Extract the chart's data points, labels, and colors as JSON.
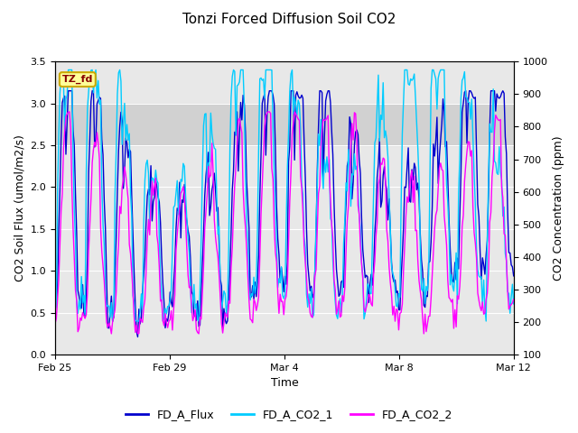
{
  "title": "Tonzi Forced Diffusion Soil CO2",
  "ylabel_left": "CO2 Soil Flux (umol/m2/s)",
  "ylabel_right": "CO2 Concentration (ppm)",
  "xlabel": "Time",
  "ylim_left": [
    0.0,
    3.5
  ],
  "ylim_right": [
    100,
    1000
  ],
  "shade_ymin": 2.5,
  "shade_ymax": 3.0,
  "xtick_labels": [
    "Feb 25",
    "Feb 29",
    "Mar 4",
    "Mar 8",
    "Mar 12"
  ],
  "xtick_positions": [
    0,
    4,
    8,
    12,
    16
  ],
  "legend_labels": [
    "FD_A_Flux",
    "FD_A_CO2_1",
    "FD_A_CO2_2"
  ],
  "flux_color": "#0000CD",
  "co2_1_color": "#00CCFF",
  "co2_2_color": "#FF00FF",
  "tag_text": "TZ_fd",
  "tag_bg": "#FFFF99",
  "tag_border": "#CCAA00",
  "plot_bg": "#E8E8E8",
  "shade_color": "#C8C8C8",
  "grid_color": "#FFFFFF",
  "title_fontsize": 11,
  "axis_fontsize": 9,
  "tick_fontsize": 8,
  "legend_fontsize": 9
}
